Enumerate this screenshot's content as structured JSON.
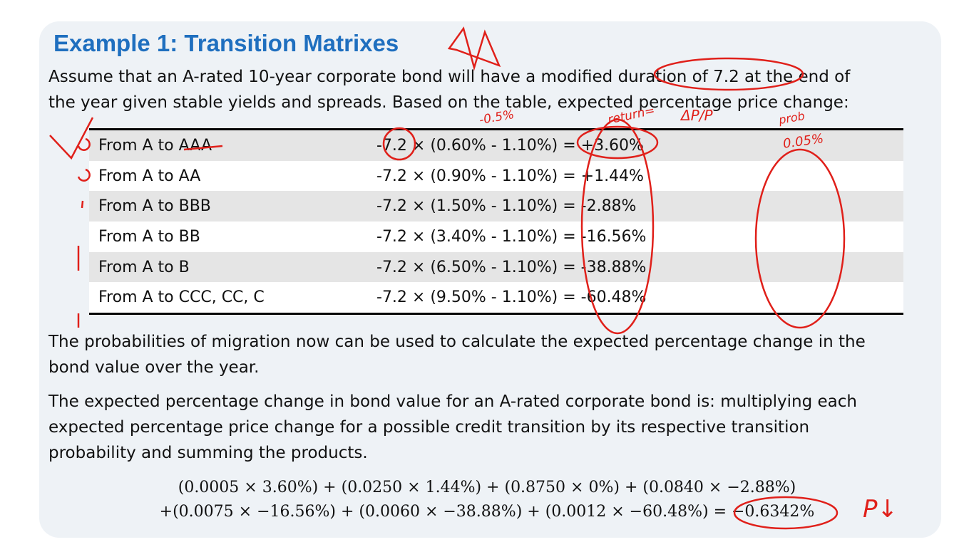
{
  "slide": {
    "title": "Example 1: Transition Matrixes",
    "intro_lines": [
      "Assume that an A-rated 10-year corporate bond will have a modified duration of 7.2 at the end of",
      "the year given stable yields and spreads. Based on the table, expected percentage price change:"
    ],
    "table": {
      "rows": [
        [
          "From A to AAA",
          "-7.2 × (0.60% - 1.10%) = +3.60%"
        ],
        [
          "From A to AA",
          "-7.2 × (0.90% - 1.10%) = +1.44%"
        ],
        [
          "From A to BBB",
          "-7.2 × (1.50% - 1.10%) = -2.88%"
        ],
        [
          "From A to BB",
          "-7.2 × (3.40% - 1.10%) = -16.56%"
        ],
        [
          "From A to B",
          "-7.2 × (6.50% - 1.10%) = -38.88%"
        ],
        [
          "From A to CCC, CC, C",
          "-7.2 × (9.50% - 1.10%) = -60.48%"
        ]
      ]
    },
    "para2_lines": [
      "The probabilities of migration now can be used to calculate the expected percentage change in the",
      "bond value over the year."
    ],
    "para3_lines": [
      "The expected percentage change in bond value for an A-rated corporate bond is: multiplying each",
      "expected percentage price change for a possible credit transition by its respective transition",
      "probability and summing the products."
    ],
    "formula_lines": [
      "(0.0005 × 3.60%) + (0.0250 × 1.44%) + (0.8750 × 0%) + (0.0840 × −2.88%)",
      "+(0.0075 × −16.56%) + (0.0060 × −38.88%) + (0.0012 × −60.48%) = −0.6342%"
    ],
    "annotations": [
      "-0.5%",
      "return=",
      "ΔP/P",
      "prob",
      "0.05%",
      "P↓"
    ]
  }
}
